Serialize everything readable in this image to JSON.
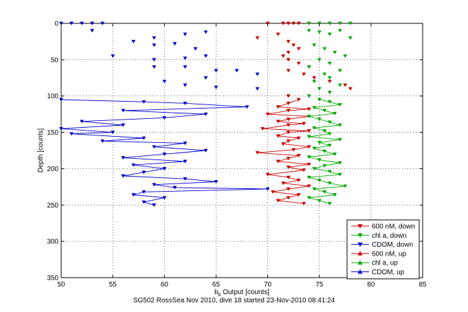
{
  "chart_data": {
    "type": "line",
    "title": "",
    "xlabel": "Output [counts]",
    "xlabel_symbol": "b",
    "xlabel_sub": "b",
    "ylabel": "Depth [counts]",
    "xlim": [
      50,
      85
    ],
    "ylim": [
      0,
      350
    ],
    "y_reversed": true,
    "grid": true,
    "grid_style": "dotted",
    "legend_position": "lower-right",
    "xticks": [
      50,
      55,
      60,
      65,
      70,
      75,
      80,
      85
    ],
    "yticks": [
      0,
      50,
      100,
      150,
      200,
      250,
      300,
      350
    ],
    "caption": "SG502 RossSea Nov 2010, dive 18 started 23-Nov-2010 08:41:24",
    "series": [
      {
        "name": "600 nM, down",
        "color": "#cc0000",
        "marker": "triangle-down",
        "connected_from_depth": 105,
        "points": [
          [
            70,
            0
          ],
          [
            72,
            0
          ],
          [
            73,
            0
          ],
          [
            72.5,
            0
          ],
          [
            71.5,
            0
          ],
          [
            69,
            20
          ],
          [
            71,
            15
          ],
          [
            72,
            25
          ],
          [
            72.5,
            30
          ],
          [
            73,
            35
          ],
          [
            72,
            40
          ],
          [
            71.5,
            45
          ],
          [
            72,
            50
          ],
          [
            73,
            55
          ],
          [
            74,
            60
          ],
          [
            72,
            65
          ],
          [
            73.5,
            70
          ],
          [
            74.5,
            75
          ],
          [
            76,
            80
          ],
          [
            77.5,
            85
          ],
          [
            78,
            90
          ],
          [
            76,
            95
          ],
          [
            74,
            100
          ],
          [
            72,
            100
          ],
          [
            73,
            105
          ],
          [
            72,
            110
          ],
          [
            71,
            115
          ],
          [
            74,
            118
          ],
          [
            72,
            120
          ],
          [
            70,
            125
          ],
          [
            74,
            128
          ],
          [
            72,
            132
          ],
          [
            71,
            135
          ],
          [
            73.5,
            138
          ],
          [
            72,
            140
          ],
          [
            69.5,
            145
          ],
          [
            74,
            148
          ],
          [
            72,
            150
          ],
          [
            71,
            155
          ],
          [
            73,
            158
          ],
          [
            72,
            162
          ],
          [
            71.5,
            166
          ],
          [
            74,
            170
          ],
          [
            72.5,
            174
          ],
          [
            69,
            178
          ],
          [
            73,
            182
          ],
          [
            72,
            186
          ],
          [
            71,
            190
          ],
          [
            74,
            194
          ],
          [
            72,
            198
          ],
          [
            73.5,
            202
          ],
          [
            70,
            208
          ],
          [
            72,
            212
          ],
          [
            73,
            216
          ],
          [
            71.5,
            220
          ],
          [
            74,
            224
          ],
          [
            72,
            228
          ],
          [
            70.5,
            232
          ],
          [
            73,
            236
          ],
          [
            72,
            240
          ],
          [
            71,
            244
          ],
          [
            73.5,
            248
          ]
        ]
      },
      {
        "name": "chl a, down",
        "color": "#00aa00",
        "marker": "triangle-down",
        "connected_from_depth": 105,
        "points": [
          [
            74,
            0
          ],
          [
            75,
            0
          ],
          [
            76,
            0
          ],
          [
            77,
            0
          ],
          [
            78,
            0
          ],
          [
            74,
            10
          ],
          [
            75,
            12
          ],
          [
            76,
            15
          ],
          [
            77,
            10
          ],
          [
            78,
            20
          ],
          [
            74.5,
            30
          ],
          [
            75.5,
            35
          ],
          [
            76.5,
            40
          ],
          [
            77.5,
            45
          ],
          [
            75,
            50
          ],
          [
            76,
            55
          ],
          [
            74,
            60
          ],
          [
            77,
            65
          ],
          [
            75.5,
            70
          ],
          [
            76,
            75
          ],
          [
            74.5,
            80
          ],
          [
            77,
            85
          ],
          [
            75,
            90
          ],
          [
            76,
            95
          ],
          [
            74,
            100
          ],
          [
            75,
            105
          ],
          [
            76,
            108
          ],
          [
            77,
            112
          ],
          [
            74.5,
            116
          ],
          [
            75.5,
            120
          ],
          [
            76.5,
            124
          ],
          [
            74,
            128
          ],
          [
            75,
            132
          ],
          [
            76,
            136
          ],
          [
            77,
            140
          ],
          [
            74.5,
            144
          ],
          [
            75.5,
            148
          ],
          [
            76,
            152
          ],
          [
            74,
            156
          ],
          [
            77,
            160
          ],
          [
            75,
            164
          ],
          [
            76,
            168
          ],
          [
            74.5,
            172
          ],
          [
            75.5,
            176
          ],
          [
            76.5,
            180
          ],
          [
            74,
            184
          ],
          [
            75,
            188
          ],
          [
            77,
            192
          ],
          [
            75.5,
            196
          ],
          [
            74.5,
            200
          ],
          [
            76,
            204
          ],
          [
            77,
            208
          ],
          [
            74,
            212
          ],
          [
            75,
            216
          ],
          [
            76,
            220
          ],
          [
            77.5,
            224
          ],
          [
            74.5,
            228
          ],
          [
            75.5,
            232
          ],
          [
            76.5,
            236
          ],
          [
            74,
            240
          ],
          [
            75,
            244
          ],
          [
            76,
            248
          ]
        ]
      },
      {
        "name": "CDOM, down",
        "color": "#0000cc",
        "marker": "triangle-down",
        "connected_from_depth": 105,
        "points": [
          [
            50,
            0
          ],
          [
            51,
            0
          ],
          [
            52,
            0
          ],
          [
            53,
            0
          ],
          [
            54,
            0
          ],
          [
            53,
            10
          ],
          [
            59,
            20
          ],
          [
            62,
            15
          ],
          [
            64,
            12
          ],
          [
            57,
            25
          ],
          [
            59,
            30
          ],
          [
            61,
            28
          ],
          [
            63,
            35
          ],
          [
            55,
            45
          ],
          [
            59,
            50
          ],
          [
            62,
            48
          ],
          [
            64,
            45
          ],
          [
            59,
            60
          ],
          [
            62,
            60
          ],
          [
            65,
            65
          ],
          [
            67,
            65
          ],
          [
            69,
            70
          ],
          [
            64,
            75
          ],
          [
            60,
            80
          ],
          [
            62,
            85
          ],
          [
            65,
            88
          ],
          [
            69,
            90
          ],
          [
            50,
            105
          ],
          [
            58,
            108
          ],
          [
            62,
            110
          ],
          [
            68,
            115
          ],
          [
            56,
            120
          ],
          [
            64,
            125
          ],
          [
            60,
            130
          ],
          [
            52,
            135
          ],
          [
            56,
            140
          ],
          [
            50,
            145
          ],
          [
            55,
            150
          ],
          [
            51,
            152
          ],
          [
            58,
            158
          ],
          [
            54,
            162
          ],
          [
            62,
            165
          ],
          [
            59,
            170
          ],
          [
            64,
            175
          ],
          [
            60,
            180
          ],
          [
            56,
            185
          ],
          [
            62,
            190
          ],
          [
            57,
            195
          ],
          [
            60,
            200
          ],
          [
            58,
            205
          ],
          [
            56,
            210
          ],
          [
            62,
            214
          ],
          [
            65,
            218
          ],
          [
            59,
            222
          ],
          [
            61,
            226
          ],
          [
            70,
            228
          ],
          [
            58,
            232
          ],
          [
            57,
            236
          ],
          [
            60,
            240
          ],
          [
            58,
            246
          ],
          [
            59,
            250
          ]
        ]
      },
      {
        "name": "600 nM, up",
        "color": "#cc0000",
        "marker": "triangle-up",
        "connected_from_depth": 0,
        "points": []
      },
      {
        "name": "chl a, up",
        "color": "#00aa00",
        "marker": "triangle-up",
        "connected_from_depth": 0,
        "points": []
      },
      {
        "name": "CDOM, up",
        "color": "#0000cc",
        "marker": "triangle-up",
        "connected_from_depth": 0,
        "points": []
      }
    ]
  }
}
